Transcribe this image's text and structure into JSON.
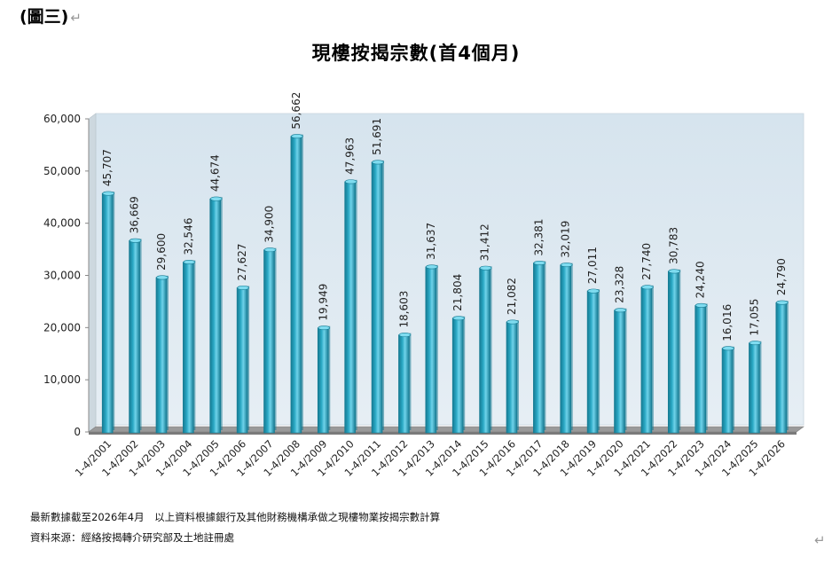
{
  "figure_label": "(圖三)",
  "chart_data": {
    "type": "bar",
    "title": "現樓按揭宗數(首4個月)",
    "categories": [
      "1-4/2001",
      "1-4/2002",
      "1-4/2003",
      "1-4/2004",
      "1-4/2005",
      "1-4/2006",
      "1-4/2007",
      "1-4/2008",
      "1-4/2009",
      "1-4/2010",
      "1-4/2011",
      "1-4/2012",
      "1-4/2013",
      "1-4/2014",
      "1-4/2015",
      "1-4/2016",
      "1-4/2017",
      "1-4/2018",
      "1-4/2019",
      "1-4/2020",
      "1-4/2021",
      "1-4/2022",
      "1-4/2023",
      "1-4/2024",
      "1-4/2025",
      "1-4/2026"
    ],
    "values": [
      45707,
      36669,
      29600,
      32546,
      44674,
      27627,
      34900,
      56662,
      19949,
      47963,
      51691,
      18603,
      31637,
      21804,
      31412,
      21082,
      32381,
      32019,
      27011,
      23328,
      27740,
      30783,
      24240,
      16016,
      17055,
      24790
    ],
    "value_labels": [
      "45,707",
      "36,669",
      "29,600",
      "32,546",
      "44,674",
      "27,627",
      "34,900",
      "56,662",
      "19,949",
      "47,963",
      "51,691",
      "18,603",
      "31,637",
      "21,804",
      "31,412",
      "21,082",
      "32,381",
      "32,019",
      "27,011",
      "23,328",
      "27,740",
      "30,783",
      "24,240",
      "16,016",
      "17,055",
      "24,790"
    ],
    "y_ticks": [
      "0",
      "10,000",
      "20,000",
      "30,000",
      "40,000",
      "50,000",
      "60,000"
    ],
    "ylim": [
      0,
      60000
    ],
    "xlabel": "",
    "ylabel": "",
    "grid": false,
    "colors": {
      "bar": "#2aa8c4",
      "bar_dark": "#157a92",
      "plot_bg": "#e6eef4"
    }
  },
  "footnotes": {
    "line1": "最新數據截至2026年4月　以上資料根據銀行及其他財務機構承做之現樓物業按揭宗數計算",
    "line2": "資料來源：經絡按揭轉介研究部及土地註冊處"
  }
}
